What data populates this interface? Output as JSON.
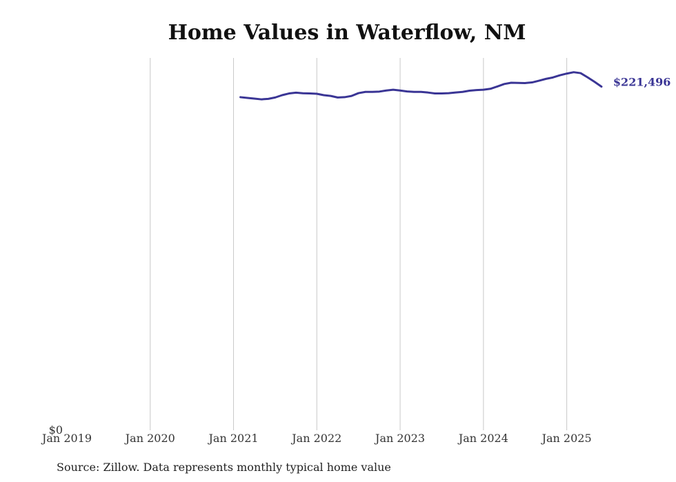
{
  "chart_data": {
    "type": "line",
    "title": "Home Values in Waterflow, NM",
    "xlabel": "",
    "ylabel": "",
    "x_ticks": [
      {
        "label": "Jan 2019",
        "date": "2019-01"
      },
      {
        "label": "Jan 2020",
        "date": "2020-01"
      },
      {
        "label": "Jan 2021",
        "date": "2021-01"
      },
      {
        "label": "Jan 2022",
        "date": "2022-01"
      },
      {
        "label": "Jan 2023",
        "date": "2023-01"
      },
      {
        "label": "Jan 2024",
        "date": "2024-01"
      },
      {
        "label": "Jan 2025",
        "date": "2025-01"
      }
    ],
    "xlim": [
      "2019-01",
      "2025-07"
    ],
    "y_ticks": [
      {
        "label": "$0",
        "value": 0
      }
    ],
    "ylim": [
      0,
      240000
    ],
    "grid": {
      "vertical": true,
      "horizontal": false
    },
    "line_color": "#3a3595",
    "end_label": "$221,496",
    "series": [
      {
        "name": "",
        "x": [
          "2021-02",
          "2021-03",
          "2021-04",
          "2021-05",
          "2021-06",
          "2021-07",
          "2021-08",
          "2021-09",
          "2021-10",
          "2021-11",
          "2021-12",
          "2022-01",
          "2022-02",
          "2022-03",
          "2022-04",
          "2022-05",
          "2022-06",
          "2022-07",
          "2022-08",
          "2022-09",
          "2022-10",
          "2022-11",
          "2022-12",
          "2023-01",
          "2023-02",
          "2023-03",
          "2023-04",
          "2023-05",
          "2023-06",
          "2023-07",
          "2023-08",
          "2023-09",
          "2023-10",
          "2023-11",
          "2023-12",
          "2024-01",
          "2024-02",
          "2024-03",
          "2024-04",
          "2024-05",
          "2024-06",
          "2024-07",
          "2024-08",
          "2024-09",
          "2024-10",
          "2024-11",
          "2024-12",
          "2025-01",
          "2025-02",
          "2025-03",
          "2025-04",
          "2025-05",
          "2025-06"
        ],
        "values": [
          214700,
          214200,
          213800,
          213300,
          213600,
          214500,
          216000,
          217100,
          217600,
          217200,
          217100,
          216900,
          216000,
          215500,
          214500,
          214700,
          215500,
          217300,
          218100,
          218100,
          218300,
          219000,
          219500,
          219000,
          218400,
          218100,
          218100,
          217700,
          217100,
          217100,
          217300,
          217700,
          218100,
          218900,
          219300,
          219500,
          220100,
          221600,
          223200,
          224000,
          223900,
          223800,
          224200,
          225300,
          226500,
          227400,
          228800,
          229900,
          230800,
          230200,
          227500,
          224600,
          221496
        ]
      }
    ]
  },
  "source": "Source: Zillow. Data represents monthly typical home value"
}
